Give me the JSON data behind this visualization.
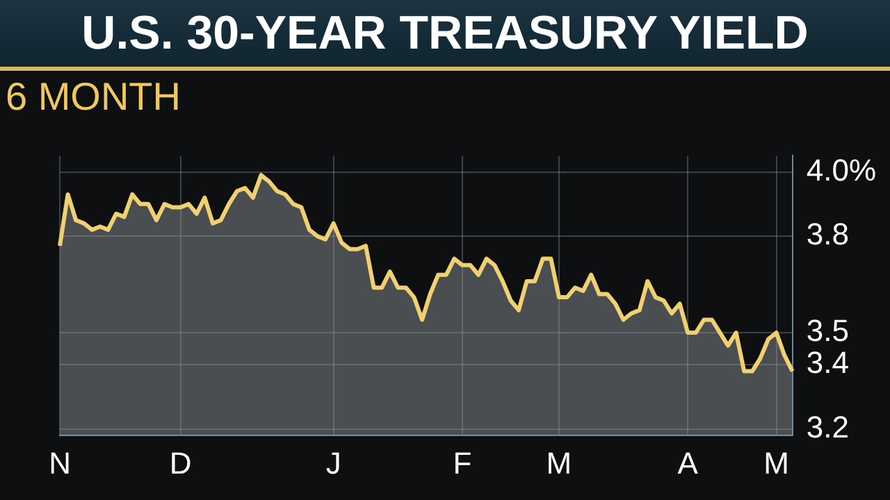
{
  "chart_data": {
    "type": "area",
    "title": "U.S. 30-YEAR TREASURY YIELD",
    "subtitle": "6 MONTH",
    "categories": [
      "N",
      null,
      null,
      null,
      null,
      null,
      null,
      null,
      null,
      null,
      null,
      null,
      null,
      null,
      null,
      "D",
      null,
      null,
      null,
      null,
      null,
      null,
      null,
      null,
      null,
      null,
      null,
      null,
      null,
      null,
      null,
      null,
      null,
      null,
      "J",
      null,
      null,
      null,
      null,
      null,
      null,
      null,
      null,
      null,
      null,
      null,
      null,
      null,
      null,
      null,
      "F",
      null,
      null,
      null,
      null,
      null,
      null,
      null,
      null,
      null,
      null,
      null,
      "M",
      null,
      null,
      null,
      null,
      null,
      null,
      null,
      null,
      null,
      null,
      null,
      null,
      null,
      null,
      null,
      "A",
      null,
      null,
      null,
      null,
      null,
      null,
      null,
      null,
      null,
      null,
      "M",
      null,
      null
    ],
    "series": [
      {
        "color": "#f0d070",
        "values": [
          3.77,
          3.93,
          3.85,
          3.84,
          3.82,
          3.83,
          3.82,
          3.87,
          3.86,
          3.93,
          3.9,
          3.9,
          3.85,
          3.9,
          3.89,
          3.89,
          3.9,
          3.87,
          3.92,
          3.84,
          3.85,
          3.9,
          3.94,
          3.95,
          3.92,
          3.99,
          3.97,
          3.94,
          3.93,
          3.9,
          3.89,
          3.82,
          3.8,
          3.79,
          3.84,
          3.78,
          3.76,
          3.76,
          3.77,
          3.64,
          3.64,
          3.69,
          3.64,
          3.64,
          3.61,
          3.54,
          3.62,
          3.68,
          3.68,
          3.73,
          3.71,
          3.71,
          3.68,
          3.73,
          3.71,
          3.66,
          3.6,
          3.57,
          3.66,
          3.66,
          3.73,
          3.73,
          3.61,
          3.61,
          3.64,
          3.63,
          3.68,
          3.62,
          3.62,
          3.59,
          3.54,
          3.56,
          3.57,
          3.66,
          3.61,
          3.6,
          3.56,
          3.59,
          3.5,
          3.5,
          3.54,
          3.54,
          3.5,
          3.46,
          3.5,
          3.38,
          3.38,
          3.42,
          3.48,
          3.5,
          3.43,
          3.38
        ]
      }
    ],
    "ylim": [
      3.18,
      4.05
    ],
    "yticks": [
      {
        "value": 4.0,
        "label": "4.0%"
      },
      {
        "value": 3.8,
        "label": "3.8"
      },
      3.5,
      {
        "value": 3.4,
        "label": "3.4"
      },
      {
        "value": 3.2,
        "label": "3.2"
      }
    ],
    "grid": true,
    "legend": false,
    "marker": "none",
    "line_style": "solid"
  }
}
